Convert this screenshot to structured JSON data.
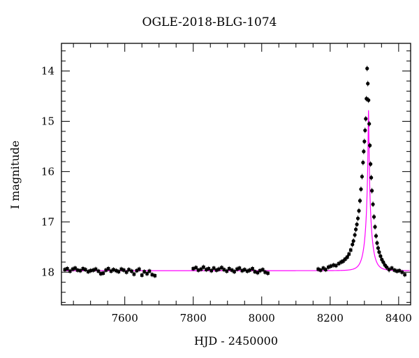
{
  "chart_data": {
    "type": "scatter",
    "title": "OGLE-2018-BLG-1074",
    "xlabel": "HJD - 2450000",
    "ylabel": "I magnitude",
    "xlim": [
      7415,
      8435
    ],
    "ylim": [
      18.65,
      13.45
    ],
    "x_ticks": [
      7600,
      7800,
      8000,
      8200,
      8400
    ],
    "y_ticks": [
      14,
      15,
      16,
      17,
      18
    ],
    "grid": false,
    "colors": {
      "points": "#000000",
      "model": "#ff00ff",
      "frame": "#000000"
    },
    "series": [
      {
        "kind": "points",
        "x": [
          7425,
          7432,
          7440,
          7448,
          7455,
          7462,
          7470,
          7478,
          7485,
          7493,
          7500,
          7508,
          7515,
          7523,
          7530,
          7537,
          7545,
          7552,
          7560,
          7567,
          7575,
          7582,
          7590,
          7597,
          7605,
          7612,
          7620,
          7627,
          7635,
          7642,
          7650,
          7657,
          7665,
          7672,
          7680,
          7688,
          7800,
          7808,
          7815,
          7823,
          7830,
          7838,
          7845,
          7853,
          7860,
          7868,
          7875,
          7883,
          7890,
          7898,
          7905,
          7913,
          7920,
          7928,
          7935,
          7943,
          7950,
          7958,
          7965,
          7973,
          7980,
          7988,
          7995,
          8003,
          8010,
          8018,
          8165,
          8172,
          8180,
          8187,
          8195,
          8202,
          8210,
          8217,
          8225,
          8232,
          8238,
          8244,
          8250,
          8255,
          8260,
          8265,
          8268,
          8272,
          8275,
          8278,
          8281,
          8284,
          8287,
          8290,
          8293,
          8296,
          8298,
          8300,
          8302,
          8304,
          8306,
          8308,
          8310,
          8312,
          8314,
          8316,
          8318,
          8320,
          8322,
          8325,
          8328,
          8331,
          8334,
          8337,
          8340,
          8343,
          8347,
          8351,
          8355,
          8360,
          8365,
          8372,
          8380,
          8388,
          8395,
          8402,
          8410,
          8418
        ],
        "y": [
          17.95,
          17.93,
          17.98,
          17.94,
          17.92,
          17.96,
          17.97,
          17.93,
          17.95,
          17.99,
          17.97,
          17.96,
          17.94,
          17.98,
          18.03,
          18.02,
          17.96,
          17.93,
          17.98,
          17.95,
          17.97,
          17.99,
          17.94,
          17.96,
          18.0,
          17.95,
          17.98,
          18.04,
          17.97,
          17.94,
          18.06,
          17.99,
          18.03,
          17.98,
          18.05,
          18.07,
          17.93,
          17.91,
          17.96,
          17.94,
          17.9,
          17.95,
          17.93,
          17.97,
          17.92,
          17.96,
          17.94,
          17.91,
          17.95,
          17.98,
          17.93,
          17.96,
          17.99,
          17.94,
          17.92,
          17.97,
          17.95,
          17.98,
          17.96,
          17.93,
          17.99,
          18.01,
          17.97,
          17.95,
          18.0,
          18.02,
          17.94,
          17.96,
          17.92,
          17.95,
          17.9,
          17.88,
          17.86,
          17.87,
          17.83,
          17.8,
          17.78,
          17.74,
          17.7,
          17.64,
          17.56,
          17.45,
          17.38,
          17.26,
          17.15,
          17.05,
          16.93,
          16.78,
          16.58,
          16.35,
          16.1,
          15.82,
          15.6,
          15.4,
          15.18,
          14.95,
          14.55,
          13.95,
          14.25,
          14.58,
          15.05,
          15.48,
          15.85,
          16.12,
          16.38,
          16.65,
          16.9,
          17.1,
          17.28,
          17.42,
          17.52,
          17.6,
          17.68,
          17.75,
          17.8,
          17.86,
          17.9,
          17.95,
          17.92,
          17.96,
          17.98,
          17.97,
          18.0,
          18.05
        ]
      },
      {
        "kind": "model",
        "baseline": 17.97,
        "t0": 8312,
        "u0": 0.05,
        "tE": 18
      }
    ]
  }
}
